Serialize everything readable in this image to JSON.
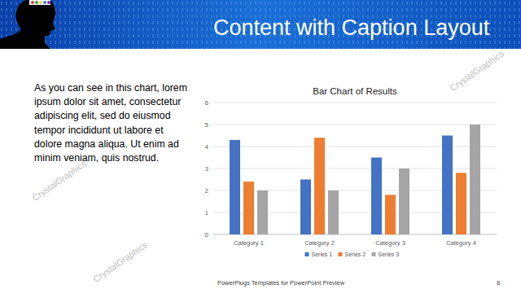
{
  "slide": {
    "title": "Content with Caption Layout",
    "caption": [
      "As you can see in this chart, lorem",
      "ipsum dolor sit amet, consectetur",
      "adipiscing elit, sed do eiusmod",
      "tempor incididunt ut labore et",
      "dolore magna aliqua. Ut enim ad",
      "minim veniam, quis nostrud."
    ],
    "footer": "PowerPlugs Templates for PowerPoint Preview",
    "page": 8,
    "watermark": "CrystalGraphics"
  },
  "chart_data": {
    "type": "bar",
    "title": "Bar Chart of Results",
    "categories": [
      "Category 1",
      "Category 2",
      "Category 3",
      "Category 4"
    ],
    "series": [
      {
        "name": "Series 1",
        "color": "#4472c4",
        "values": [
          4.3,
          2.5,
          3.5,
          4.5
        ]
      },
      {
        "name": "Series 2",
        "color": "#ed7d31",
        "values": [
          2.4,
          4.4,
          1.8,
          2.8
        ]
      },
      {
        "name": "Series 3",
        "color": "#a5a5a5",
        "values": [
          2,
          2,
          3,
          5
        ]
      }
    ],
    "ylim": [
      0,
      6
    ],
    "yticks": [
      0,
      1,
      2,
      3,
      4,
      5,
      6
    ],
    "grid": true,
    "legend": "bottom"
  }
}
